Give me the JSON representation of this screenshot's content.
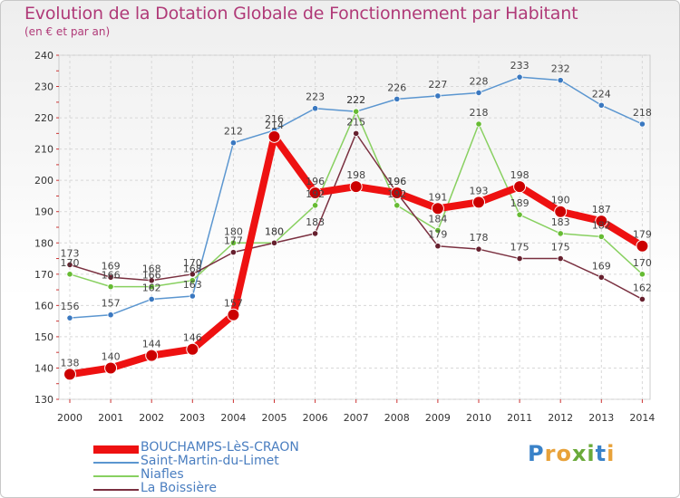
{
  "header": {
    "title": "Evolution de la Dotation Globale de Fonctionnement par Habitant",
    "subtitle": "(en € et par an)"
  },
  "logo": {
    "text": "Proxiti",
    "letters": [
      {
        "char": "P",
        "color": "#3a82c8"
      },
      {
        "char": "r",
        "color": "#e8a23a"
      },
      {
        "char": "o",
        "color": "#e8a23a"
      },
      {
        "char": "x",
        "color": "#6aaa3a"
      },
      {
        "char": "i",
        "color": "#6aaa3a"
      },
      {
        "char": "t",
        "color": "#3a82c8"
      },
      {
        "char": "i",
        "color": "#e8a23a"
      }
    ]
  },
  "chart_data": {
    "type": "line",
    "title": "Evolution de la Dotation Globale de Fonctionnement par Habitant",
    "subtitle": "(en € et par an)",
    "xlabel": "",
    "ylabel": "",
    "grid": true,
    "legend_position": "bottom-left",
    "categories": [
      "2000",
      "2001",
      "2002",
      "2003",
      "2004",
      "2005",
      "2006",
      "2007",
      "2008",
      "2009",
      "2010",
      "2011",
      "2012",
      "2013",
      "2014"
    ],
    "ylim": [
      130,
      240
    ],
    "yticks": [
      130,
      140,
      150,
      160,
      170,
      180,
      190,
      200,
      210,
      220,
      230,
      240
    ],
    "series": [
      {
        "name": "BOUCHAMPS-LèS-CRAON",
        "color": "#ee1111",
        "marker_color": "#cc0000",
        "emphasis": true,
        "values": [
          138,
          140,
          144,
          146,
          157,
          214,
          196,
          198,
          196,
          191,
          193,
          198,
          190,
          187,
          179
        ]
      },
      {
        "name": "Saint-Martin-du-Limet",
        "color": "#5b96d0",
        "marker_color": "#3a78c0",
        "emphasis": false,
        "values": [
          156,
          157,
          162,
          163,
          212,
          216,
          223,
          222,
          226,
          227,
          228,
          233,
          232,
          224,
          218
        ]
      },
      {
        "name": "Niafles",
        "color": "#88d060",
        "marker_color": "#66bb33",
        "emphasis": false,
        "values": [
          170,
          166,
          166,
          168,
          180,
          180,
          192,
          222,
          192,
          184,
          218,
          189,
          183,
          182,
          170
        ]
      },
      {
        "name": "La Boissière",
        "color": "#7a3040",
        "marker_color": "#66202e",
        "emphasis": false,
        "values": [
          173,
          169,
          168,
          170,
          177,
          180,
          183,
          215,
          196,
          179,
          178,
          175,
          175,
          169,
          162
        ]
      }
    ]
  }
}
